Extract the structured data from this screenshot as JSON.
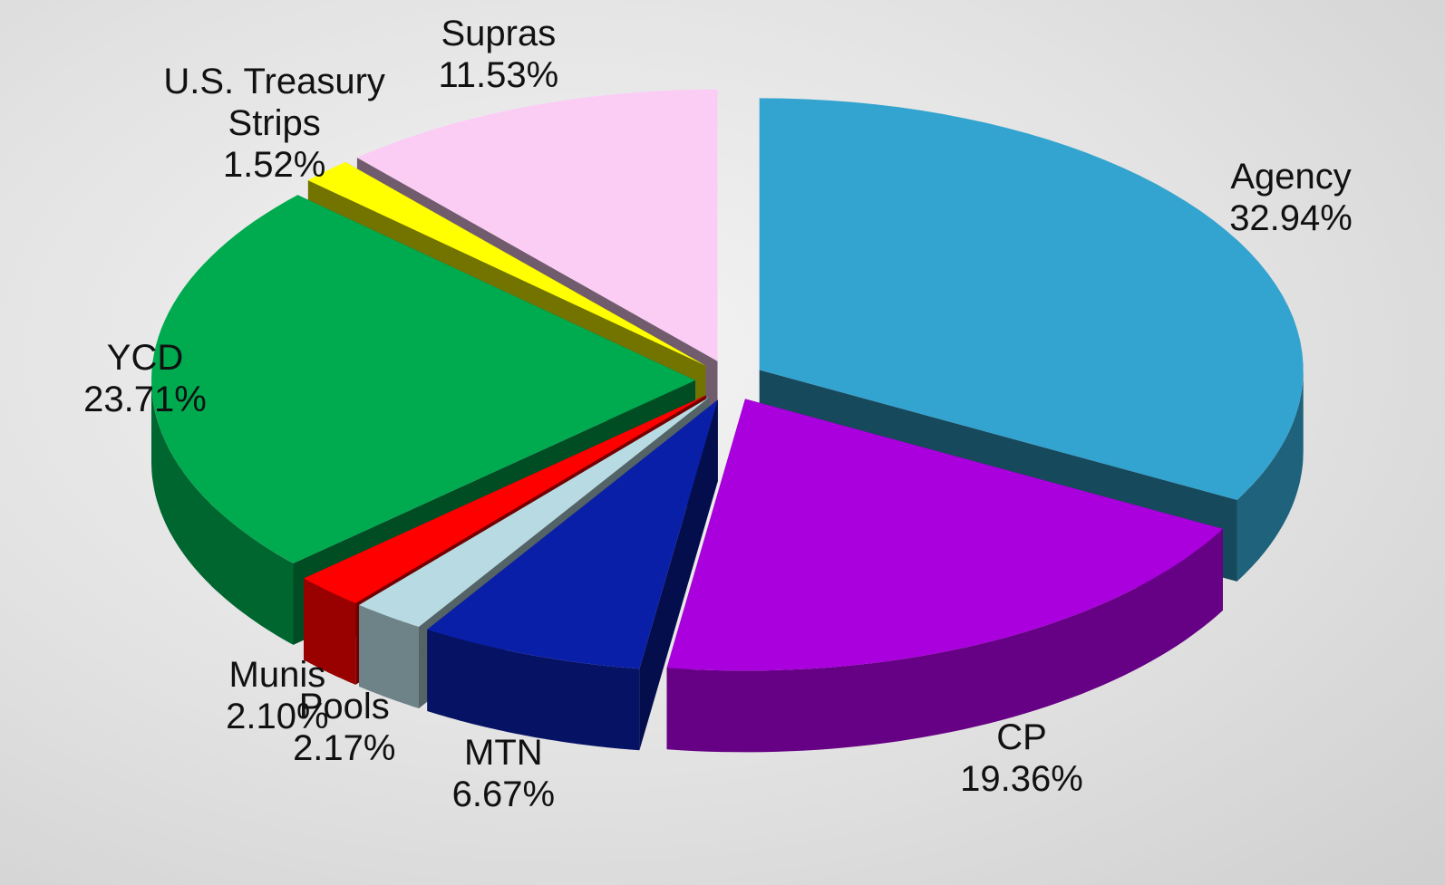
{
  "chart_data": {
    "type": "pie",
    "categories": [
      "Agency",
      "CP",
      "MTN",
      "Pools",
      "Munis",
      "YCD",
      "U.S. Treasury Strips",
      "Supras"
    ],
    "values": [
      32.94,
      19.36,
      6.67,
      2.17,
      2.1,
      23.71,
      1.52,
      11.53
    ],
    "value_labels": [
      "32.94%",
      "19.36%",
      "6.67%",
      "2.17%",
      "2.10%",
      "23.71%",
      "1.52%",
      "11.53%"
    ],
    "colors": [
      "#33a3cf",
      "#aa00dd",
      "#0a1fa8",
      "#b8dbe3",
      "#ff0000",
      "#00aa4f",
      "#ffff00",
      "#fbcdf5"
    ]
  }
}
